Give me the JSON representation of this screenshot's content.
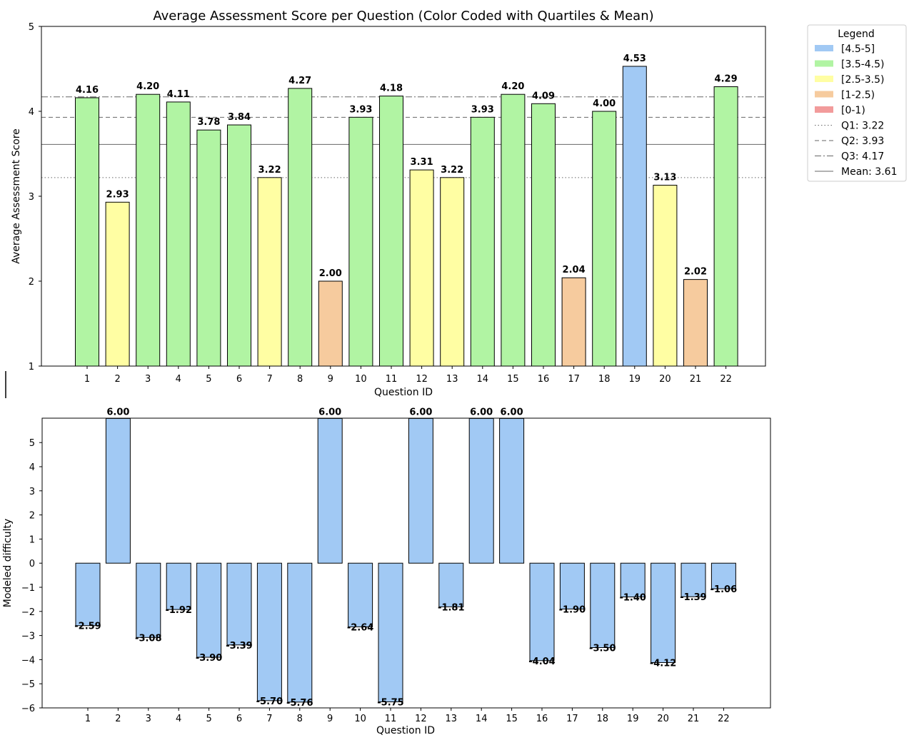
{
  "chart_data": [
    {
      "type": "bar",
      "title": "Average Assessment Score per Question (Color Coded with Quartiles & Mean)",
      "xlabel": "Question ID",
      "ylabel": "Average Assessment Score",
      "ylim": [
        1,
        5
      ],
      "yticks": [
        "1",
        "2",
        "3",
        "4",
        "5"
      ],
      "categories": [
        "1",
        "2",
        "3",
        "4",
        "5",
        "6",
        "7",
        "8",
        "9",
        "10",
        "11",
        "12",
        "13",
        "14",
        "15",
        "16",
        "17",
        "18",
        "19",
        "20",
        "21",
        "22"
      ],
      "values": [
        4.16,
        2.93,
        4.2,
        4.11,
        3.78,
        3.84,
        3.22,
        4.27,
        2.0,
        3.93,
        4.18,
        3.31,
        3.22,
        3.93,
        4.2,
        4.09,
        2.04,
        4.0,
        4.53,
        3.13,
        2.02,
        4.29
      ],
      "labels": [
        "4.16",
        "2.93",
        "4.20",
        "4.11",
        "3.78",
        "3.84",
        "3.22",
        "4.27",
        "2.00",
        "3.93",
        "4.18",
        "3.31",
        "3.22",
        "3.93",
        "4.20",
        "4.09",
        "2.04",
        "4.00",
        "4.53",
        "3.13",
        "2.02",
        "4.29"
      ],
      "color_bins": [
        {
          "label": "[4.5-5]",
          "min": 4.5,
          "color": "#a1c9f4"
        },
        {
          "label": "[3.5-4.5)",
          "min": 3.5,
          "color": "#b1f4a3"
        },
        {
          "label": "[2.5-3.5)",
          "min": 2.5,
          "color": "#fffea3"
        },
        {
          "label": "[1-2.5)",
          "min": 1.0,
          "color": "#f6cb9e"
        },
        {
          "label": "[0-1)",
          "min": 0.0,
          "color": "#f29b9b"
        }
      ],
      "reference_lines": [
        {
          "label": "Q1: 3.22",
          "value": 3.22,
          "style": "dotted"
        },
        {
          "label": "Q2: 3.93",
          "value": 3.93,
          "style": "dashed"
        },
        {
          "label": "Q3: 4.17",
          "value": 4.17,
          "style": "dashdot"
        },
        {
          "label": "Mean: 3.61",
          "value": 3.61,
          "style": "solid"
        }
      ],
      "legend": {
        "title": "Legend",
        "placement": "outside-top-right"
      }
    },
    {
      "type": "bar",
      "title": "",
      "xlabel": "Question ID",
      "ylabel": "Modeled difficulty",
      "ylim": [
        -6,
        6
      ],
      "yticks": [
        "−6",
        "−5",
        "−4",
        "−3",
        "−2",
        "−1",
        "0",
        "1",
        "2",
        "3",
        "4",
        "5"
      ],
      "bar_color": "#a1c9f4",
      "categories": [
        "1",
        "2",
        "3",
        "4",
        "5",
        "6",
        "7",
        "8",
        "9",
        "10",
        "11",
        "12",
        "13",
        "14",
        "15",
        "16",
        "17",
        "18",
        "19",
        "20",
        "21",
        "22"
      ],
      "values": [
        -2.59,
        6.0,
        -3.08,
        -1.92,
        -3.9,
        -3.39,
        -5.7,
        -5.76,
        6.0,
        -2.64,
        -5.75,
        6.0,
        -1.81,
        6.0,
        6.0,
        -4.04,
        -1.9,
        -3.5,
        -1.4,
        -4.12,
        -1.39,
        -1.06
      ],
      "labels": [
        "-2.59",
        "6.00",
        "-3.08",
        "-1.92",
        "-3.90",
        "-3.39",
        "-5.70",
        "-5.76",
        "6.00",
        "-2.64",
        "-5.75",
        "6.00",
        "-1.81",
        "6.00",
        "6.00",
        "-4.04",
        "-1.90",
        "-3.50",
        "-1.40",
        "-4.12",
        "-1.39",
        "-1.06"
      ]
    }
  ]
}
